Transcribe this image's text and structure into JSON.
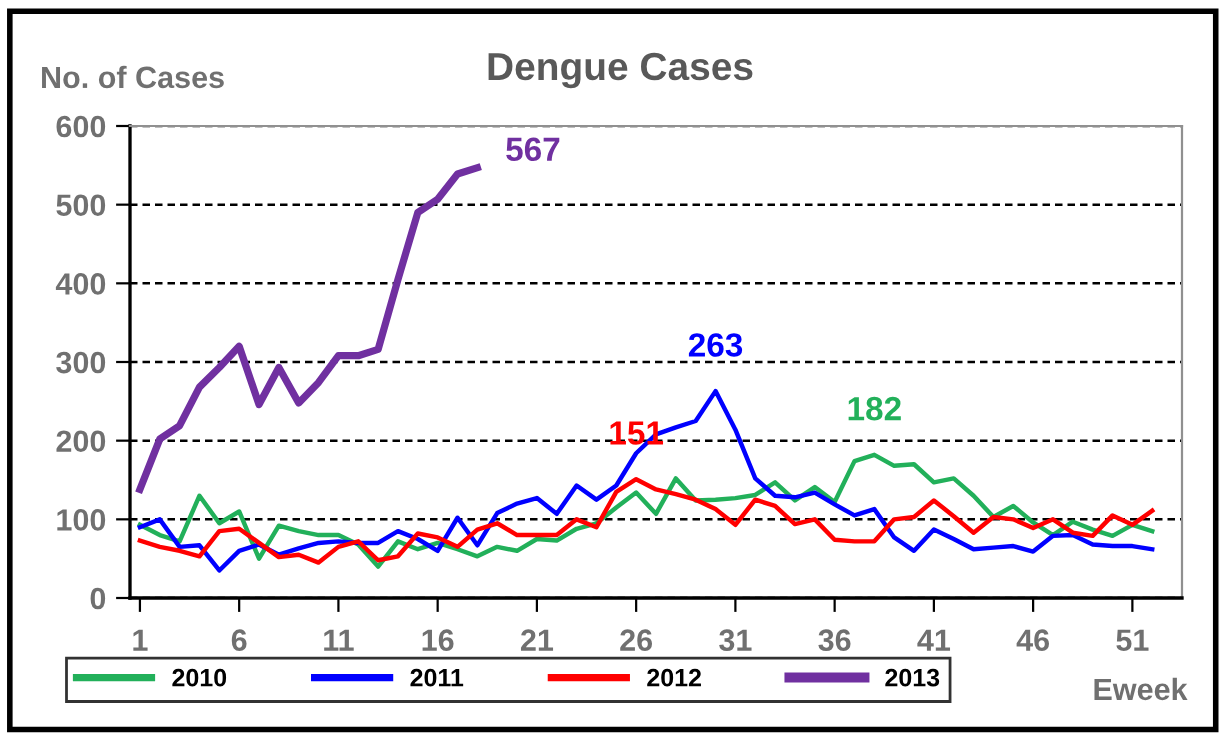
{
  "chart_data": {
    "type": "line",
    "title": "Dengue Cases",
    "ylabel": "No. of Cases",
    "xlabel": "Eweek",
    "x": [
      1,
      2,
      3,
      4,
      5,
      6,
      7,
      8,
      9,
      10,
      11,
      12,
      13,
      14,
      15,
      16,
      17,
      18,
      19,
      20,
      21,
      22,
      23,
      24,
      25,
      26,
      27,
      28,
      29,
      30,
      31,
      32,
      33,
      34,
      35,
      36,
      37,
      38,
      39,
      40,
      41,
      42,
      43,
      44,
      45,
      46,
      47,
      48,
      49,
      50,
      51,
      52
    ],
    "series": [
      {
        "name": "2010",
        "color": "#22b05a",
        "values": [
          93,
          80,
          72,
          130,
          95,
          110,
          50,
          92,
          85,
          80,
          80,
          68,
          40,
          72,
          62,
          70,
          62,
          53,
          65,
          60,
          75,
          73,
          88,
          95,
          115,
          134,
          107,
          152,
          124,
          125,
          127,
          131,
          147,
          124,
          141,
          122,
          174,
          182,
          168,
          170,
          147,
          152,
          130,
          103,
          117,
          96,
          80,
          97,
          87,
          79,
          93,
          85
        ]
      },
      {
        "name": "2011",
        "color": "#0000ff",
        "values": [
          90,
          100,
          65,
          67,
          35,
          60,
          68,
          55,
          63,
          70,
          72,
          70,
          70,
          85,
          75,
          60,
          102,
          67,
          108,
          120,
          127,
          107,
          143,
          125,
          143,
          184,
          208,
          217,
          225,
          263,
          214,
          152,
          130,
          128,
          134,
          119,
          105,
          113,
          77,
          60,
          87,
          75,
          62,
          64,
          66,
          59,
          79,
          80,
          68,
          66,
          66,
          62
        ]
      },
      {
        "name": "2012",
        "color": "#ff0000",
        "values": [
          73,
          65,
          60,
          53,
          85,
          88,
          70,
          52,
          55,
          45,
          65,
          72,
          48,
          53,
          82,
          77,
          65,
          87,
          95,
          80,
          80,
          80,
          100,
          90,
          135,
          151,
          138,
          132,
          125,
          113,
          93,
          125,
          117,
          94,
          100,
          74,
          72,
          72,
          100,
          103,
          124,
          104,
          83,
          103,
          100,
          89,
          100,
          83,
          79,
          105,
          93,
          111
        ]
      },
      {
        "name": "2013",
        "color": "#7030a0",
        "values": [
          138,
          202,
          219,
          268,
          293,
          320,
          246,
          293,
          248,
          274,
          308,
          308,
          316,
          405,
          490,
          507,
          539,
          547,
          null,
          null,
          null,
          null,
          null,
          null,
          null,
          null,
          null,
          null,
          null,
          null,
          null,
          null,
          null,
          null,
          null,
          null,
          null,
          null,
          null,
          null,
          null,
          null,
          null,
          null,
          null,
          null,
          null,
          null,
          null,
          null,
          null,
          null
        ]
      }
    ],
    "xlim": [
      0.5,
      53.5
    ],
    "xticks": [
      1,
      6,
      11,
      16,
      21,
      26,
      31,
      36,
      41,
      46,
      51
    ],
    "ylim": [
      0,
      600
    ],
    "yticks": [
      0,
      100,
      200,
      300,
      400,
      500,
      600
    ],
    "grid": "y",
    "legend": "bottom",
    "marker": "none",
    "line_style": "solid",
    "annotations": [
      {
        "text": "567",
        "x": 18,
        "y": 547
      },
      {
        "text": "263",
        "x": 30,
        "y": 263
      },
      {
        "text": "151",
        "x": 26,
        "y": 151
      },
      {
        "text": "182",
        "x": 38,
        "y": 182
      }
    ]
  }
}
